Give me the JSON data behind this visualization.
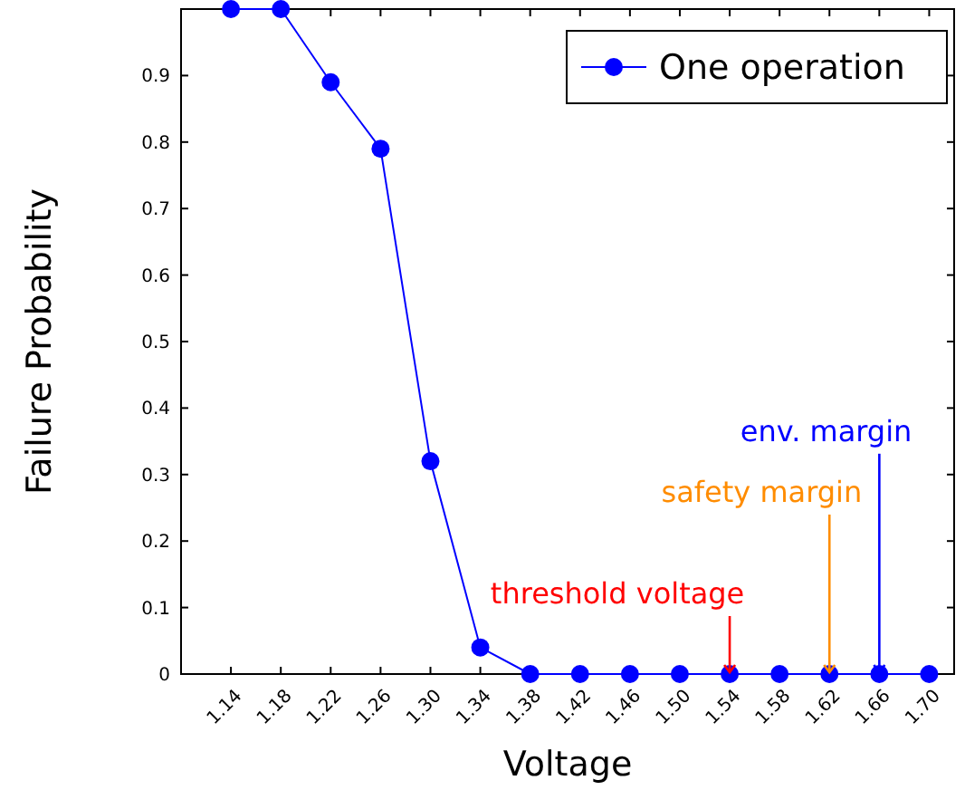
{
  "chart_data": {
    "type": "line",
    "xlabel": "Voltage",
    "ylabel": "Failure Probability",
    "x": [
      1.14,
      1.18,
      1.22,
      1.26,
      1.3,
      1.34,
      1.38,
      1.42,
      1.46,
      1.5,
      1.54,
      1.58,
      1.62,
      1.66,
      1.7
    ],
    "series": [
      {
        "name": "One operation",
        "color": "#0000ff",
        "values": [
          1.0,
          1.0,
          0.89,
          0.79,
          0.32,
          0.04,
          0,
          0,
          0,
          0,
          0,
          0,
          0,
          0,
          0
        ]
      }
    ],
    "xlim": [
      1.1,
      1.72
    ],
    "ylim": [
      0,
      1
    ],
    "xticks": [
      {
        "value": 1.14,
        "label": "1.14"
      },
      {
        "value": 1.18,
        "label": "1.18"
      },
      {
        "value": 1.22,
        "label": "1.22"
      },
      {
        "value": 1.26,
        "label": "1.26"
      },
      {
        "value": 1.3,
        "label": "1.30"
      },
      {
        "value": 1.34,
        "label": "1.34"
      },
      {
        "value": 1.38,
        "label": "1.38"
      },
      {
        "value": 1.42,
        "label": "1.42"
      },
      {
        "value": 1.46,
        "label": "1.46"
      },
      {
        "value": 1.5,
        "label": "1.50"
      },
      {
        "value": 1.54,
        "label": "1.54"
      },
      {
        "value": 1.58,
        "label": "1.58"
      },
      {
        "value": 1.62,
        "label": "1.62"
      },
      {
        "value": 1.66,
        "label": "1.66"
      },
      {
        "value": 1.7,
        "label": "1.70"
      }
    ],
    "yticks": [
      0,
      0.1,
      0.2,
      0.3,
      0.4,
      0.5,
      0.6,
      0.7,
      0.8,
      0.9,
      {
        "value": 1,
        "label": null
      }
    ],
    "marker": "circle",
    "line_style": "solid",
    "legend": "top right",
    "grid": false,
    "annotations": [
      {
        "text": "threshold voltage",
        "x": 1.54,
        "y": 0
      },
      {
        "text": "safety margin",
        "x": 1.62,
        "y": 0
      },
      {
        "text": "env. margin",
        "x": 1.66,
        "y": 0
      }
    ]
  }
}
